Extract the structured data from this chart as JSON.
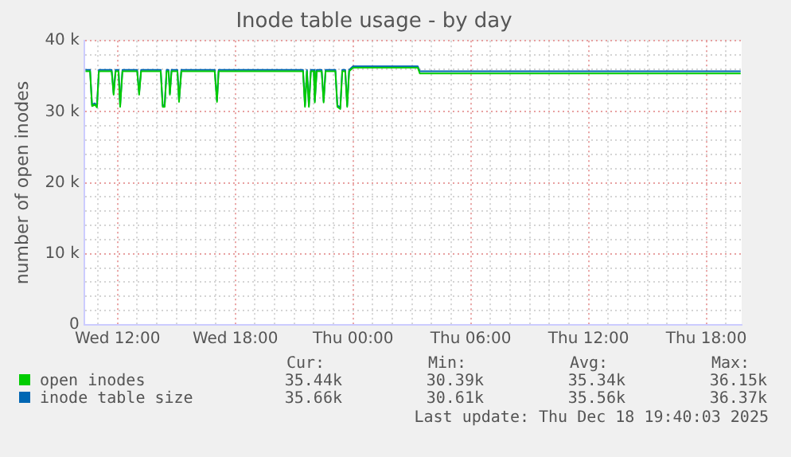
{
  "chart_data": {
    "type": "line",
    "title": "Inode table usage - by day",
    "ylabel": "number of open inodes",
    "xlim": [
      "2025-12-17T10:18",
      "2025-12-18T19:48"
    ],
    "xticks": [
      {
        "value": "2025-12-17T11:00",
        "label": null
      },
      {
        "value": "2025-12-17T12:00",
        "label": "Wed 12:00"
      },
      {
        "value": "2025-12-17T13:00",
        "label": null
      },
      {
        "value": "2025-12-17T14:00",
        "label": null
      },
      {
        "value": "2025-12-17T15:00",
        "label": null
      },
      {
        "value": "2025-12-17T16:00",
        "label": null
      },
      {
        "value": "2025-12-17T17:00",
        "label": null
      },
      {
        "value": "2025-12-17T18:00",
        "label": "Wed 18:00"
      },
      {
        "value": "2025-12-17T19:00",
        "label": null
      },
      {
        "value": "2025-12-17T20:00",
        "label": null
      },
      {
        "value": "2025-12-17T21:00",
        "label": null
      },
      {
        "value": "2025-12-17T22:00",
        "label": null
      },
      {
        "value": "2025-12-17T23:00",
        "label": null
      },
      {
        "value": "2025-12-18T00:00",
        "label": "Thu 00:00"
      },
      {
        "value": "2025-12-18T01:00",
        "label": null
      },
      {
        "value": "2025-12-18T02:00",
        "label": null
      },
      {
        "value": "2025-12-18T03:00",
        "label": null
      },
      {
        "value": "2025-12-18T04:00",
        "label": null
      },
      {
        "value": "2025-12-18T05:00",
        "label": null
      },
      {
        "value": "2025-12-18T06:00",
        "label": "Thu 06:00"
      },
      {
        "value": "2025-12-18T07:00",
        "label": null
      },
      {
        "value": "2025-12-18T08:00",
        "label": null
      },
      {
        "value": "2025-12-18T09:00",
        "label": null
      },
      {
        "value": "2025-12-18T10:00",
        "label": null
      },
      {
        "value": "2025-12-18T11:00",
        "label": null
      },
      {
        "value": "2025-12-18T12:00",
        "label": "Thu 12:00"
      },
      {
        "value": "2025-12-18T13:00",
        "label": null
      },
      {
        "value": "2025-12-18T14:00",
        "label": null
      },
      {
        "value": "2025-12-18T15:00",
        "label": null
      },
      {
        "value": "2025-12-18T16:00",
        "label": null
      },
      {
        "value": "2025-12-18T17:00",
        "label": null
      },
      {
        "value": "2025-12-18T18:00",
        "label": "Thu 18:00"
      },
      {
        "value": "2025-12-18T19:00",
        "label": null
      }
    ],
    "ylim": [
      0,
      40000
    ],
    "yticks": [
      {
        "value": 0,
        "label": "0"
      },
      {
        "value": 2000,
        "label": null
      },
      {
        "value": 4000,
        "label": null
      },
      {
        "value": 6000,
        "label": null
      },
      {
        "value": 8000,
        "label": null
      },
      {
        "value": 10000,
        "label": "10 k"
      },
      {
        "value": 12000,
        "label": null
      },
      {
        "value": 14000,
        "label": null
      },
      {
        "value": 16000,
        "label": null
      },
      {
        "value": 18000,
        "label": null
      },
      {
        "value": 20000,
        "label": "20 k"
      },
      {
        "value": 22000,
        "label": null
      },
      {
        "value": 24000,
        "label": null
      },
      {
        "value": 26000,
        "label": null
      },
      {
        "value": 28000,
        "label": null
      },
      {
        "value": 30000,
        "label": "30 k"
      },
      {
        "value": 32000,
        "label": null
      },
      {
        "value": 34000,
        "label": null
      },
      {
        "value": 36000,
        "label": null
      },
      {
        "value": 38000,
        "label": null
      },
      {
        "value": 40000,
        "label": "40 k"
      }
    ],
    "x": [
      "2025-12-17T10:22",
      "2025-12-17T10:36",
      "2025-12-17T10:42",
      "2025-12-17T10:51",
      "2025-12-17T10:57",
      "2025-12-17T11:03",
      "2025-12-17T11:42",
      "2025-12-17T11:48",
      "2025-12-17T11:54",
      "2025-12-17T12:03",
      "2025-12-17T12:08",
      "2025-12-17T12:15",
      "2025-12-17T13:00",
      "2025-12-17T13:06",
      "2025-12-17T13:12",
      "2025-12-17T14:12",
      "2025-12-17T14:18",
      "2025-12-17T14:24",
      "2025-12-17T14:30",
      "2025-12-17T14:36",
      "2025-12-17T14:40",
      "2025-12-17T14:45",
      "2025-12-17T15:03",
      "2025-12-17T15:08",
      "2025-12-17T15:15",
      "2025-12-17T16:57",
      "2025-12-17T17:04",
      "2025-12-17T17:09",
      "2025-12-17T21:27",
      "2025-12-17T21:33",
      "2025-12-17T21:39",
      "2025-12-17T21:45",
      "2025-12-17T21:51",
      "2025-12-17T22:00",
      "2025-12-17T22:03",
      "2025-12-17T22:09",
      "2025-12-17T22:24",
      "2025-12-17T22:30",
      "2025-12-17T22:36",
      "2025-12-17T23:06",
      "2025-12-17T23:12",
      "2025-12-17T23:21",
      "2025-12-17T23:27",
      "2025-12-17T23:36",
      "2025-12-17T23:42",
      "2025-12-17T23:48",
      "2025-12-18T00:00",
      "2025-12-18T03:18",
      "2025-12-18T03:24",
      "2025-12-18T19:45"
    ],
    "series": [
      {
        "name": "open inodes",
        "color": "#00cc00",
        "values": [
          35700,
          35700,
          30800,
          31000,
          30600,
          35700,
          35700,
          32400,
          35700,
          35700,
          30700,
          35700,
          35700,
          32400,
          35700,
          35700,
          30700,
          30700,
          35700,
          35700,
          32400,
          35700,
          35700,
          31400,
          35700,
          35700,
          31400,
          35700,
          35700,
          30700,
          35700,
          30700,
          35700,
          35700,
          31300,
          35700,
          35700,
          31300,
          35700,
          35700,
          30700,
          30400,
          35700,
          35700,
          30700,
          35700,
          36200,
          36200,
          35400,
          35400
        ]
      },
      {
        "name": "inode table size",
        "color": "#0066b3",
        "values": [
          35900,
          35900,
          31000,
          31200,
          30800,
          35900,
          35900,
          32600,
          35900,
          35900,
          30900,
          35900,
          35900,
          32600,
          35900,
          35900,
          30900,
          30900,
          35900,
          35900,
          32600,
          35900,
          35900,
          31600,
          35900,
          35900,
          31600,
          35900,
          35900,
          30900,
          35900,
          30900,
          35900,
          35900,
          31500,
          35900,
          35900,
          31500,
          35900,
          35900,
          30900,
          30600,
          35900,
          35900,
          30900,
          35900,
          36400,
          36400,
          35700,
          35700
        ]
      }
    ],
    "grid": true,
    "legend": "bottom",
    "marker": "none",
    "line_style": "solid",
    "annotations": [
      "Cur:",
      "Min:",
      "Avg:",
      "Max:",
      "35.44k",
      "30.39k",
      "35.34k",
      "36.15k",
      "35.66k",
      "30.61k",
      "35.56k",
      "36.37k",
      "Last update: Thu Dec 18 19:40:03 2025"
    ]
  }
}
